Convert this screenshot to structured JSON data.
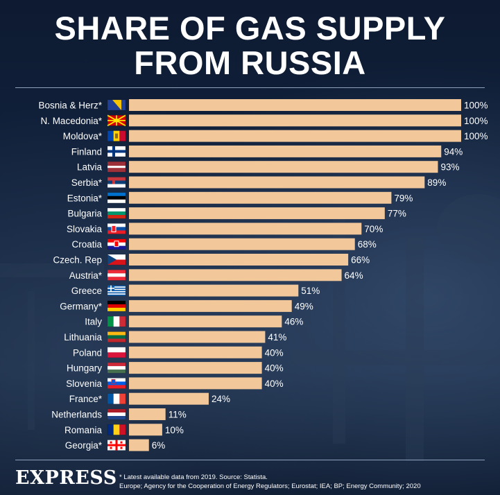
{
  "title_lines": [
    "SHARE OF GAS SUPPLY",
    "FROM RUSSIA"
  ],
  "footer": {
    "logo": "EXPRESS",
    "note": "* Latest available data from 2019. Source: Statista.",
    "sources": "Europe; Agency for the Cooperation of Energy Regulators; Eurostat; IEA; BP; Energy Community; 2020"
  },
  "colors": {
    "bar": "#f2c89a",
    "text": "#ffffff",
    "background": "#13243f"
  },
  "chart_data": {
    "type": "bar",
    "orientation": "horizontal",
    "categories": [
      "Bosnia & Herz*",
      "N. Macedonia*",
      "Moldova*",
      "Finland",
      "Latvia",
      "Serbia*",
      "Estonia*",
      "Bulgaria",
      "Slovakia",
      "Croatia",
      "Czech. Rep",
      "Austria*",
      "Greece",
      "Germany*",
      "Italy",
      "Lithuania",
      "Poland",
      "Hungary",
      "Slovenia",
      "France*",
      "Netherlands",
      "Romania",
      "Georgia*"
    ],
    "values": [
      100,
      100,
      100,
      94,
      93,
      89,
      79,
      77,
      70,
      68,
      66,
      64,
      51,
      49,
      46,
      41,
      40,
      40,
      40,
      24,
      11,
      10,
      6
    ],
    "value_labels": [
      "100%",
      "100%",
      "100%",
      "94%",
      "93%",
      "89%",
      "79%",
      "77%",
      "70%",
      "68%",
      "66%",
      "64%",
      "51%",
      "49%",
      "46%",
      "41%",
      "40%",
      "40%",
      "40%",
      "24%",
      "11%",
      "10%",
      "6%"
    ],
    "flag_icons": [
      "bosnia-flag-icon",
      "north-macedonia-flag-icon",
      "moldova-flag-icon",
      "finland-flag-icon",
      "latvia-flag-icon",
      "serbia-flag-icon",
      "estonia-flag-icon",
      "bulgaria-flag-icon",
      "slovakia-flag-icon",
      "croatia-flag-icon",
      "czech-flag-icon",
      "austria-flag-icon",
      "greece-flag-icon",
      "germany-flag-icon",
      "italy-flag-icon",
      "lithuania-flag-icon",
      "poland-flag-icon",
      "hungary-flag-icon",
      "slovenia-flag-icon",
      "france-flag-icon",
      "netherlands-flag-icon",
      "romania-flag-icon",
      "georgia-flag-icon"
    ],
    "xlim": [
      0,
      100
    ],
    "grid": false,
    "legend": "none"
  }
}
